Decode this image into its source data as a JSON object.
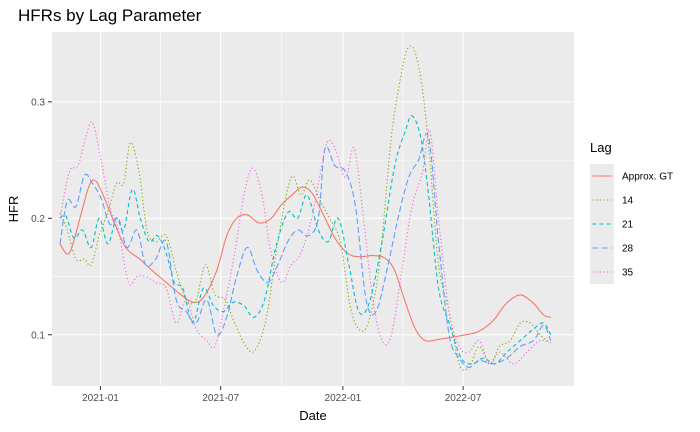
{
  "chart_data": {
    "type": "line",
    "title": "HFRs by Lag Parameter",
    "xlabel": "Date",
    "ylabel": "HFR",
    "xlim": [
      "2020-10-20",
      "2022-12-15"
    ],
    "ylim": [
      0.056,
      0.36
    ],
    "x_ticks": [
      "2021-01",
      "2021-07",
      "2022-01",
      "2022-07"
    ],
    "y_ticks": [
      0.1,
      0.2,
      0.3
    ],
    "y_tick_labels": [
      "0.1",
      "0.2",
      "0.3"
    ],
    "grid": true,
    "legend": {
      "title": "Lag",
      "position": "right"
    },
    "series": [
      {
        "name": "Approx. GT",
        "color": "#F8766D",
        "dash": "solid",
        "points": [
          [
            "2020-11-01",
            0.178
          ],
          [
            "2020-11-15",
            0.17
          ],
          [
            "2020-12-01",
            0.2
          ],
          [
            "2020-12-15",
            0.228
          ],
          [
            "2020-12-25",
            0.232
          ],
          [
            "2021-01-08",
            0.216
          ],
          [
            "2021-01-22",
            0.196
          ],
          [
            "2021-02-08",
            0.175
          ],
          [
            "2021-03-01",
            0.165
          ],
          [
            "2021-03-20",
            0.155
          ],
          [
            "2021-04-10",
            0.145
          ],
          [
            "2021-05-01",
            0.135
          ],
          [
            "2021-05-20",
            0.128
          ],
          [
            "2021-06-05",
            0.132
          ],
          [
            "2021-06-25",
            0.155
          ],
          [
            "2021-07-10",
            0.185
          ],
          [
            "2021-07-25",
            0.2
          ],
          [
            "2021-08-10",
            0.203
          ],
          [
            "2021-08-28",
            0.196
          ],
          [
            "2021-09-15",
            0.2
          ],
          [
            "2021-10-01",
            0.212
          ],
          [
            "2021-10-20",
            0.222
          ],
          [
            "2021-11-01",
            0.227
          ],
          [
            "2021-11-15",
            0.222
          ],
          [
            "2021-12-01",
            0.205
          ],
          [
            "2021-12-20",
            0.183
          ],
          [
            "2022-01-08",
            0.17
          ],
          [
            "2022-01-25",
            0.167
          ],
          [
            "2022-02-15",
            0.168
          ],
          [
            "2022-03-05",
            0.166
          ],
          [
            "2022-03-20",
            0.155
          ],
          [
            "2022-04-05",
            0.128
          ],
          [
            "2022-04-20",
            0.105
          ],
          [
            "2022-05-05",
            0.095
          ],
          [
            "2022-05-25",
            0.096
          ],
          [
            "2022-06-15",
            0.098
          ],
          [
            "2022-07-05",
            0.1
          ],
          [
            "2022-07-25",
            0.103
          ],
          [
            "2022-08-15",
            0.112
          ],
          [
            "2022-09-01",
            0.125
          ],
          [
            "2022-09-15",
            0.132
          ],
          [
            "2022-09-28",
            0.134
          ],
          [
            "2022-10-15",
            0.127
          ],
          [
            "2022-10-30",
            0.117
          ],
          [
            "2022-11-10",
            0.115
          ]
        ]
      },
      {
        "name": "14",
        "color": "#7CAE00",
        "dash": "dotted",
        "points": [
          [
            "2020-11-01",
            0.205
          ],
          [
            "2020-11-12",
            0.19
          ],
          [
            "2020-11-25",
            0.165
          ],
          [
            "2020-12-08",
            0.165
          ],
          [
            "2020-12-18",
            0.16
          ],
          [
            "2020-12-30",
            0.185
          ],
          [
            "2021-01-12",
            0.205
          ],
          [
            "2021-01-25",
            0.23
          ],
          [
            "2021-02-05",
            0.23
          ],
          [
            "2021-02-15",
            0.265
          ],
          [
            "2021-02-28",
            0.24
          ],
          [
            "2021-03-12",
            0.19
          ],
          [
            "2021-03-25",
            0.18
          ],
          [
            "2021-04-10",
            0.185
          ],
          [
            "2021-04-25",
            0.155
          ],
          [
            "2021-05-10",
            0.13
          ],
          [
            "2021-05-25",
            0.13
          ],
          [
            "2021-06-08",
            0.16
          ],
          [
            "2021-06-22",
            0.135
          ],
          [
            "2021-07-08",
            0.13
          ],
          [
            "2021-07-22",
            0.11
          ],
          [
            "2021-08-08",
            0.09
          ],
          [
            "2021-08-22",
            0.087
          ],
          [
            "2021-09-08",
            0.115
          ],
          [
            "2021-09-25",
            0.18
          ],
          [
            "2021-10-15",
            0.235
          ],
          [
            "2021-10-30",
            0.22
          ],
          [
            "2021-11-12",
            0.233
          ],
          [
            "2021-11-28",
            0.215
          ],
          [
            "2021-12-12",
            0.2
          ],
          [
            "2021-12-28",
            0.18
          ],
          [
            "2022-01-12",
            0.125
          ],
          [
            "2022-01-25",
            0.105
          ],
          [
            "2022-02-08",
            0.11
          ],
          [
            "2022-02-25",
            0.16
          ],
          [
            "2022-03-15",
            0.27
          ],
          [
            "2022-04-01",
            0.33
          ],
          [
            "2022-04-10",
            0.347
          ],
          [
            "2022-04-20",
            0.342
          ],
          [
            "2022-05-01",
            0.31
          ],
          [
            "2022-05-12",
            0.25
          ],
          [
            "2022-05-25",
            0.16
          ],
          [
            "2022-06-10",
            0.12
          ],
          [
            "2022-06-25",
            0.075
          ],
          [
            "2022-07-10",
            0.072
          ],
          [
            "2022-07-25",
            0.09
          ],
          [
            "2022-08-10",
            0.075
          ],
          [
            "2022-08-25",
            0.09
          ],
          [
            "2022-09-10",
            0.095
          ],
          [
            "2022-09-25",
            0.11
          ],
          [
            "2022-10-10",
            0.11
          ],
          [
            "2022-10-25",
            0.1
          ],
          [
            "2022-11-10",
            0.093
          ]
        ]
      },
      {
        "name": "21",
        "color": "#00BFC4",
        "dash": "dashed",
        "points": [
          [
            "2020-11-01",
            0.2
          ],
          [
            "2020-11-10",
            0.202
          ],
          [
            "2020-11-22",
            0.183
          ],
          [
            "2020-12-05",
            0.19
          ],
          [
            "2020-12-18",
            0.175
          ],
          [
            "2020-12-30",
            0.2
          ],
          [
            "2021-01-12",
            0.178
          ],
          [
            "2021-01-25",
            0.2
          ],
          [
            "2021-02-05",
            0.19
          ],
          [
            "2021-02-18",
            0.225
          ],
          [
            "2021-03-02",
            0.2
          ],
          [
            "2021-03-15",
            0.18
          ],
          [
            "2021-03-28",
            0.185
          ],
          [
            "2021-04-10",
            0.17
          ],
          [
            "2021-04-22",
            0.145
          ],
          [
            "2021-05-05",
            0.14
          ],
          [
            "2021-05-20",
            0.11
          ],
          [
            "2021-06-05",
            0.14
          ],
          [
            "2021-06-20",
            0.125
          ],
          [
            "2021-07-05",
            0.12
          ],
          [
            "2021-07-20",
            0.128
          ],
          [
            "2021-08-05",
            0.125
          ],
          [
            "2021-08-20",
            0.115
          ],
          [
            "2021-09-05",
            0.13
          ],
          [
            "2021-09-22",
            0.175
          ],
          [
            "2021-10-10",
            0.205
          ],
          [
            "2021-10-25",
            0.2
          ],
          [
            "2021-11-08",
            0.22
          ],
          [
            "2021-11-25",
            0.19
          ],
          [
            "2021-12-10",
            0.18
          ],
          [
            "2021-12-25",
            0.2
          ],
          [
            "2022-01-10",
            0.16
          ],
          [
            "2022-01-25",
            0.12
          ],
          [
            "2022-02-10",
            0.128
          ],
          [
            "2022-03-01",
            0.18
          ],
          [
            "2022-03-20",
            0.245
          ],
          [
            "2022-04-05",
            0.275
          ],
          [
            "2022-04-15",
            0.288
          ],
          [
            "2022-04-28",
            0.27
          ],
          [
            "2022-05-10",
            0.22
          ],
          [
            "2022-05-25",
            0.14
          ],
          [
            "2022-06-10",
            0.11
          ],
          [
            "2022-06-28",
            0.08
          ],
          [
            "2022-07-15",
            0.075
          ],
          [
            "2022-08-01",
            0.08
          ],
          [
            "2022-08-18",
            0.075
          ],
          [
            "2022-09-05",
            0.085
          ],
          [
            "2022-09-25",
            0.095
          ],
          [
            "2022-10-15",
            0.105
          ],
          [
            "2022-10-30",
            0.11
          ],
          [
            "2022-11-10",
            0.1
          ]
        ]
      },
      {
        "name": "28",
        "color": "#619CFF",
        "dash": "longdash",
        "points": [
          [
            "2020-11-01",
            0.178
          ],
          [
            "2020-11-12",
            0.215
          ],
          [
            "2020-11-25",
            0.21
          ],
          [
            "2020-12-08",
            0.237
          ],
          [
            "2020-12-20",
            0.23
          ],
          [
            "2021-01-02",
            0.217
          ],
          [
            "2021-01-15",
            0.195
          ],
          [
            "2021-01-28",
            0.2
          ],
          [
            "2021-02-10",
            0.175
          ],
          [
            "2021-02-25",
            0.19
          ],
          [
            "2021-03-10",
            0.16
          ],
          [
            "2021-03-25",
            0.165
          ],
          [
            "2021-04-10",
            0.18
          ],
          [
            "2021-04-25",
            0.13
          ],
          [
            "2021-05-10",
            0.12
          ],
          [
            "2021-05-25",
            0.11
          ],
          [
            "2021-06-10",
            0.13
          ],
          [
            "2021-06-25",
            0.1
          ],
          [
            "2021-07-10",
            0.115
          ],
          [
            "2021-07-25",
            0.15
          ],
          [
            "2021-08-10",
            0.175
          ],
          [
            "2021-08-25",
            0.155
          ],
          [
            "2021-09-10",
            0.145
          ],
          [
            "2021-09-25",
            0.16
          ],
          [
            "2021-10-10",
            0.18
          ],
          [
            "2021-10-25",
            0.19
          ],
          [
            "2021-11-10",
            0.185
          ],
          [
            "2021-11-25",
            0.2
          ],
          [
            "2021-12-05",
            0.26
          ],
          [
            "2021-12-20",
            0.245
          ],
          [
            "2022-01-05",
            0.24
          ],
          [
            "2022-01-20",
            0.21
          ],
          [
            "2022-02-05",
            0.13
          ],
          [
            "2022-02-20",
            0.12
          ],
          [
            "2022-03-10",
            0.16
          ],
          [
            "2022-03-25",
            0.2
          ],
          [
            "2022-04-10",
            0.235
          ],
          [
            "2022-04-25",
            0.25
          ],
          [
            "2022-05-10",
            0.27
          ],
          [
            "2022-05-25",
            0.18
          ],
          [
            "2022-06-10",
            0.1
          ],
          [
            "2022-06-25",
            0.08
          ],
          [
            "2022-07-10",
            0.072
          ],
          [
            "2022-07-25",
            0.078
          ],
          [
            "2022-08-15",
            0.075
          ],
          [
            "2022-09-05",
            0.08
          ],
          [
            "2022-09-25",
            0.09
          ],
          [
            "2022-10-15",
            0.095
          ],
          [
            "2022-10-30",
            0.108
          ],
          [
            "2022-11-10",
            0.095
          ]
        ]
      },
      {
        "name": "35",
        "color": "#F564E3",
        "dash": "dotted",
        "points": [
          [
            "2020-11-01",
            0.2
          ],
          [
            "2020-11-15",
            0.24
          ],
          [
            "2020-11-28",
            0.245
          ],
          [
            "2020-12-10",
            0.27
          ],
          [
            "2020-12-20",
            0.282
          ],
          [
            "2021-01-02",
            0.25
          ],
          [
            "2021-01-15",
            0.21
          ],
          [
            "2021-01-28",
            0.19
          ],
          [
            "2021-02-12",
            0.145
          ],
          [
            "2021-02-25",
            0.15
          ],
          [
            "2021-03-10",
            0.15
          ],
          [
            "2021-03-25",
            0.145
          ],
          [
            "2021-04-10",
            0.14
          ],
          [
            "2021-04-25",
            0.11
          ],
          [
            "2021-05-10",
            0.13
          ],
          [
            "2021-05-25",
            0.105
          ],
          [
            "2021-06-10",
            0.095
          ],
          [
            "2021-06-22",
            0.09
          ],
          [
            "2021-07-05",
            0.12
          ],
          [
            "2021-07-22",
            0.17
          ],
          [
            "2021-08-05",
            0.22
          ],
          [
            "2021-08-18",
            0.243
          ],
          [
            "2021-09-01",
            0.22
          ],
          [
            "2021-09-15",
            0.17
          ],
          [
            "2021-10-01",
            0.145
          ],
          [
            "2021-10-15",
            0.16
          ],
          [
            "2021-10-30",
            0.17
          ],
          [
            "2021-11-15",
            0.2
          ],
          [
            "2021-11-25",
            0.23
          ],
          [
            "2021-12-08",
            0.265
          ],
          [
            "2021-12-20",
            0.26
          ],
          [
            "2022-01-05",
            0.235
          ],
          [
            "2022-01-18",
            0.26
          ],
          [
            "2022-02-01",
            0.2
          ],
          [
            "2022-02-15",
            0.13
          ],
          [
            "2022-03-01",
            0.095
          ],
          [
            "2022-03-15",
            0.1
          ],
          [
            "2022-04-01",
            0.16
          ],
          [
            "2022-04-15",
            0.21
          ],
          [
            "2022-05-01",
            0.24
          ],
          [
            "2022-05-12",
            0.275
          ],
          [
            "2022-05-25",
            0.2
          ],
          [
            "2022-06-10",
            0.12
          ],
          [
            "2022-06-25",
            0.09
          ],
          [
            "2022-07-10",
            0.085
          ],
          [
            "2022-07-25",
            0.095
          ],
          [
            "2022-08-10",
            0.075
          ],
          [
            "2022-08-25",
            0.085
          ],
          [
            "2022-09-15",
            0.075
          ],
          [
            "2022-10-05",
            0.085
          ],
          [
            "2022-10-25",
            0.095
          ],
          [
            "2022-11-10",
            0.093
          ]
        ]
      }
    ]
  }
}
